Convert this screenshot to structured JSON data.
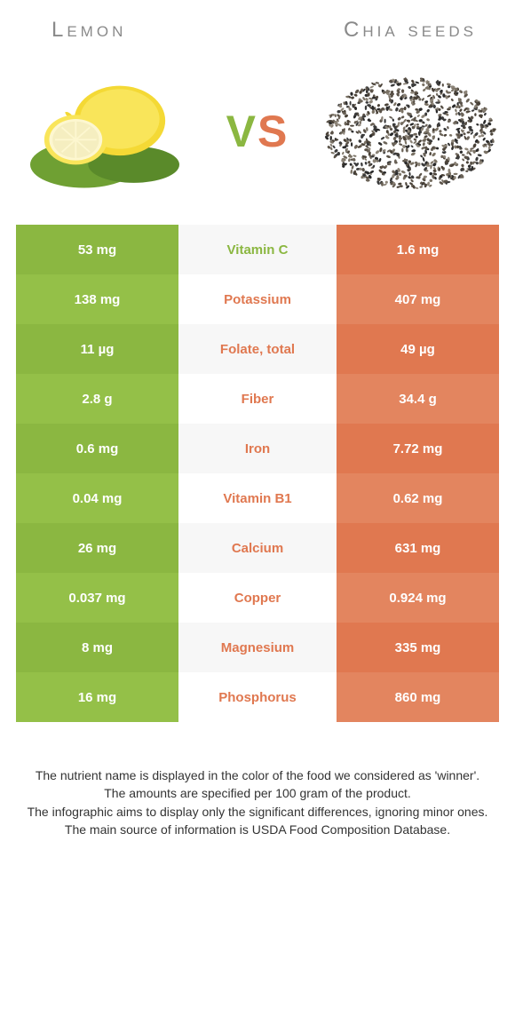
{
  "food_left": {
    "name": "Lemon",
    "color_primary": "#8bb741",
    "color_alt": "#94c048"
  },
  "food_right": {
    "name": "Chia seeds",
    "color_primary": "#e07850",
    "color_alt": "#e3855f"
  },
  "vs_label": "VS",
  "label_colors": {
    "left_win": "#8bb741",
    "right_win": "#e07850"
  },
  "rows": [
    {
      "label": "Vitamin C",
      "left": "53 mg",
      "right": "1.6 mg",
      "winner": "left"
    },
    {
      "label": "Potassium",
      "left": "138 mg",
      "right": "407 mg",
      "winner": "right"
    },
    {
      "label": "Folate, total",
      "left": "11 µg",
      "right": "49 µg",
      "winner": "right"
    },
    {
      "label": "Fiber",
      "left": "2.8 g",
      "right": "34.4 g",
      "winner": "right"
    },
    {
      "label": "Iron",
      "left": "0.6 mg",
      "right": "7.72 mg",
      "winner": "right"
    },
    {
      "label": "Vitamin B1",
      "left": "0.04 mg",
      "right": "0.62 mg",
      "winner": "right"
    },
    {
      "label": "Calcium",
      "left": "26 mg",
      "right": "631 mg",
      "winner": "right"
    },
    {
      "label": "Copper",
      "left": "0.037 mg",
      "right": "0.924 mg",
      "winner": "right"
    },
    {
      "label": "Magnesium",
      "left": "8 mg",
      "right": "335 mg",
      "winner": "right"
    },
    {
      "label": "Phosphorus",
      "left": "16 mg",
      "right": "860 mg",
      "winner": "right"
    }
  ],
  "footer": [
    "The nutrient name is displayed in the color of the food we considered as 'winner'.",
    "The amounts are specified per 100 gram of the product.",
    "The infographic aims to display only the significant differences, ignoring minor ones.",
    "The main source of information is USDA Food Composition Database."
  ]
}
